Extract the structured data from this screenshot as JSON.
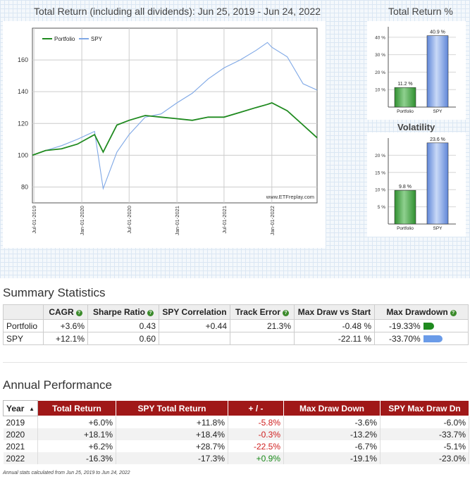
{
  "main_chart": {
    "title": "Total Return (including all dividends): Jun 25, 2019 - Jun 24, 2022",
    "watermark": "www.ETFreplay.com",
    "legend": [
      {
        "label": "Portfolio",
        "color": "#1f8a1f"
      },
      {
        "label": "SPY",
        "color": "#7fa8e6"
      }
    ],
    "y_ticks": [
      "80",
      "100",
      "120",
      "140",
      "160"
    ],
    "x_ticks": [
      "Jul-01-2019",
      "Jan-01-2020",
      "Jul-01-2020",
      "Jan-01-2021",
      "Jul-01-2021",
      "Jan-01-2022"
    ]
  },
  "side": {
    "total_return_title": "Total Return %",
    "volatility_title": "Volatility"
  },
  "chart_data": [
    {
      "type": "line",
      "title": "Total Return (including all dividends): Jun 25, 2019 - Jun 24, 2022",
      "x": [
        "2019-06-25",
        "2019-08-15",
        "2019-10-15",
        "2019-12-15",
        "2020-02-19",
        "2020-03-23",
        "2020-05-15",
        "2020-07-01",
        "2020-09-01",
        "2020-11-01",
        "2021-01-01",
        "2021-03-01",
        "2021-05-01",
        "2021-07-01",
        "2021-09-01",
        "2021-11-01",
        "2021-12-15",
        "2022-01-01",
        "2022-03-01",
        "2022-05-01",
        "2022-06-24"
      ],
      "series": [
        {
          "name": "Portfolio",
          "color": "#1f8a1f",
          "values": [
            100,
            103,
            104,
            107,
            113,
            102,
            119,
            122,
            125,
            124,
            123,
            122,
            124,
            124,
            127,
            130,
            132,
            133,
            128,
            119,
            111
          ]
        },
        {
          "name": "SPY",
          "color": "#7fa8e6",
          "values": [
            100,
            103,
            106,
            110,
            115,
            79,
            102,
            113,
            124,
            126,
            133,
            139,
            148,
            155,
            160,
            166,
            171,
            168,
            162,
            145,
            141
          ]
        }
      ],
      "ylim": [
        70,
        180
      ],
      "grid": true,
      "legend": "top-left"
    },
    {
      "type": "bar",
      "title": "Total Return %",
      "categories": [
        "Portfolio",
        "SPY"
      ],
      "values": [
        11.2,
        40.9
      ],
      "labels": [
        "11.2 %",
        "40.9 %"
      ],
      "y_ticks": [
        "10 %",
        "20 %",
        "30 %",
        "40 %"
      ],
      "ylim": [
        0,
        46
      ],
      "colors": [
        "#2f8f2f",
        "#5f86d8"
      ]
    },
    {
      "type": "bar",
      "title": "Volatility",
      "categories": [
        "Portfolio",
        "SPY"
      ],
      "values": [
        9.8,
        23.6
      ],
      "labels": [
        "9.8 %",
        "23.6 %"
      ],
      "y_ticks": [
        "5 %",
        "10 %",
        "15 %",
        "20 %"
      ],
      "ylim": [
        0,
        25
      ],
      "colors": [
        "#2f8f2f",
        "#5f86d8"
      ]
    }
  ],
  "summary": {
    "title": "Summary Statistics",
    "columns": [
      "",
      "CAGR",
      "Sharpe Ratio",
      "SPY Correlation",
      "Track Error",
      "Max Draw vs Start",
      "Max Drawdown"
    ],
    "rows": [
      {
        "label": "Portfolio",
        "cagr": "+3.6%",
        "sharpe": "0.43",
        "corr": "+0.44",
        "track": "21.3%",
        "mdvs": "-0.48 %",
        "mdd": "-19.33%",
        "mdd_value": 19.33,
        "bar_color": "#1f8a1f"
      },
      {
        "label": "SPY",
        "cagr": "+12.1%",
        "sharpe": "0.60",
        "corr": "",
        "track": "",
        "mdvs": "-22.11 %",
        "mdd": "-33.70%",
        "mdd_value": 33.7,
        "bar_color": "#6a9be8"
      }
    ]
  },
  "annual": {
    "title": "Annual Performance",
    "columns": [
      "Year",
      "Total Return",
      "SPY Total Return",
      "+ / -",
      "Max Draw Down",
      "SPY Max Draw Dn"
    ],
    "sort_indicator": "▲",
    "rows": [
      {
        "year": "2019",
        "tr": "+6.0%",
        "spy": "+11.8%",
        "diff": "-5.8%",
        "mdd": "-3.6%",
        "spymdd": "-6.0%"
      },
      {
        "year": "2020",
        "tr": "+18.1%",
        "spy": "+18.4%",
        "diff": "-0.3%",
        "mdd": "-13.2%",
        "spymdd": "-33.7%"
      },
      {
        "year": "2021",
        "tr": "+6.2%",
        "spy": "+28.7%",
        "diff": "-22.5%",
        "mdd": "-6.7%",
        "spymdd": "-5.1%"
      },
      {
        "year": "2022",
        "tr": "-16.3%",
        "spy": "-17.3%",
        "diff": "+0.9%",
        "mdd": "-19.1%",
        "spymdd": "-23.0%"
      }
    ],
    "footnote": "Annual stats calculated from Jun 25, 2019 to Jun 24, 2022"
  }
}
